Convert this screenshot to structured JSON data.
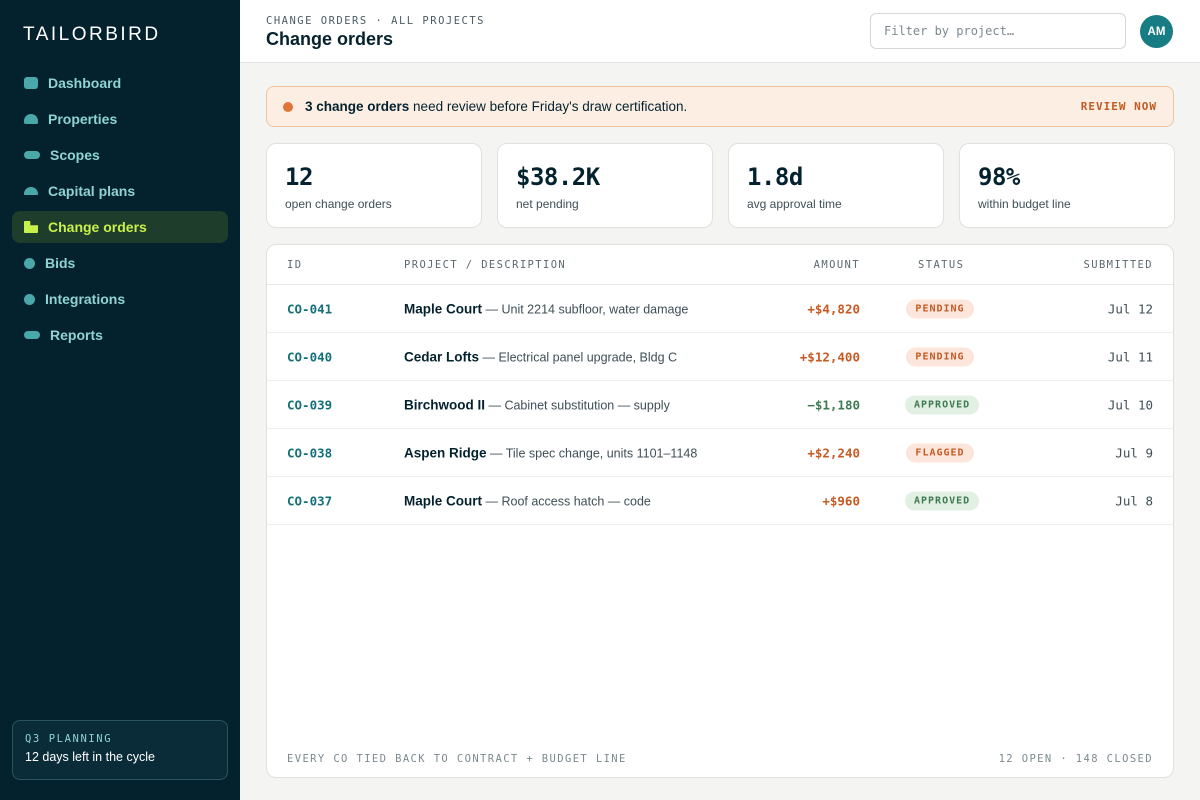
{
  "brand": {
    "logo_text": "TAILORBIRD"
  },
  "sidebar": {
    "items": [
      {
        "label": "Dashboard"
      },
      {
        "label": "Properties"
      },
      {
        "label": "Scopes"
      },
      {
        "label": "Capital plans"
      },
      {
        "label": "Change orders",
        "active": true
      },
      {
        "label": "Bids"
      },
      {
        "label": "Integrations"
      },
      {
        "label": "Reports"
      }
    ],
    "promo": {
      "label": "Q3 PLANNING",
      "text": "12 days left in the cycle"
    }
  },
  "header": {
    "breadcrumb": "CHANGE ORDERS · ALL PROJECTS",
    "title": "Change orders",
    "search_placeholder": "Filter by project…",
    "avatar_initials": "AM"
  },
  "alert": {
    "bold": "3 change orders",
    "text": " need review before Friday's draw certification.",
    "action": "REVIEW NOW"
  },
  "stats": [
    {
      "value": "12",
      "label": "open change orders"
    },
    {
      "value": "$38.2K",
      "label": "net pending"
    },
    {
      "value": "1.8d",
      "label": "avg approval time"
    },
    {
      "value": "98%",
      "label": "within budget line"
    }
  ],
  "table": {
    "columns": {
      "id": "ID",
      "desc": "PROJECT / DESCRIPTION",
      "amount": "AMOUNT",
      "status": "STATUS",
      "submitted": "SUBMITTED"
    },
    "rows": [
      {
        "id": "CO-041",
        "project": "Maple Court",
        "desc": " — Unit 2214 subfloor, water damage",
        "amount": "+$4,820",
        "status": "PENDING",
        "submitted": "Jul 12"
      },
      {
        "id": "CO-040",
        "project": "Cedar Lofts",
        "desc": " — Electrical panel upgrade, Bldg C",
        "amount": "+$12,400",
        "status": "PENDING",
        "submitted": "Jul 11"
      },
      {
        "id": "CO-039",
        "project": "Birchwood II",
        "desc": " — Cabinet substitution — supply",
        "amount": "−$1,180",
        "status": "APPROVED",
        "submitted": "Jul 10"
      },
      {
        "id": "CO-038",
        "project": "Aspen Ridge",
        "desc": " — Tile spec change, units 1101–1148",
        "amount": "+$2,240",
        "status": "FLAGGED",
        "submitted": "Jul 9"
      },
      {
        "id": "CO-037",
        "project": "Maple Court",
        "desc": " — Roof access hatch — code",
        "amount": "+$960",
        "status": "APPROVED",
        "submitted": "Jul 8"
      }
    ],
    "footer_left": "EVERY CO TIED BACK TO CONTRACT + BUDGET LINE",
    "footer_right": "12 OPEN · 148 CLOSED"
  }
}
